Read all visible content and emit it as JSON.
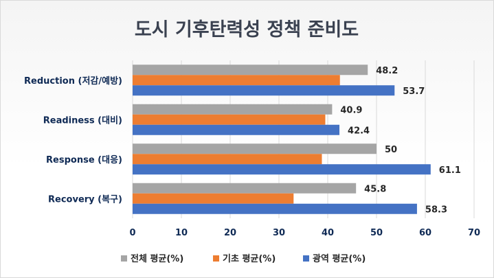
{
  "chart_data": {
    "type": "bar",
    "orientation": "horizontal",
    "title": "도시 기후탄력성 정책 준비도",
    "categories": [
      "Reduction (저감/예방)",
      "Readiness (대비)",
      "Response (대응)",
      "Recovery (복구)"
    ],
    "series": [
      {
        "name": "전체 평균(%)",
        "color": "#a5a5a5",
        "values": [
          48.2,
          40.9,
          50,
          45.8
        ],
        "labels": [
          "48.2",
          "40.9",
          "50",
          "45.8"
        ]
      },
      {
        "name": "기초 평균(%)",
        "color": "#ed7d31",
        "values": [
          42.5,
          39.5,
          38.8,
          33.0
        ],
        "labels": null
      },
      {
        "name": "광역 평균(%)",
        "color": "#4472c4",
        "values": [
          53.7,
          42.4,
          61.1,
          58.3
        ],
        "labels": [
          "53.7",
          "42.4",
          "61.1",
          "58.3"
        ]
      }
    ],
    "xlim": [
      0,
      70
    ],
    "xticks": [
      "0",
      "10",
      "20",
      "30",
      "40",
      "50",
      "60",
      "70"
    ],
    "grid": true,
    "legend_position": "bottom"
  }
}
